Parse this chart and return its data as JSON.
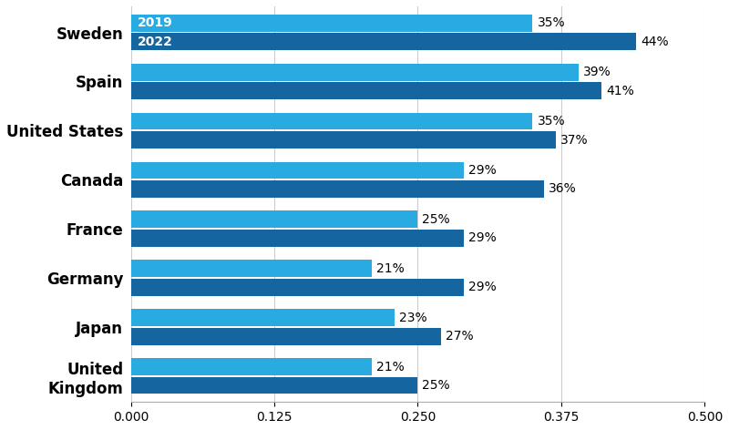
{
  "countries": [
    "United\nKingdom",
    "Japan",
    "Germany",
    "France",
    "Canada",
    "United States",
    "Spain",
    "Sweden"
  ],
  "values_2019": [
    0.21,
    0.23,
    0.21,
    0.25,
    0.29,
    0.35,
    0.39,
    0.35
  ],
  "values_2022": [
    0.25,
    0.27,
    0.29,
    0.29,
    0.36,
    0.37,
    0.41,
    0.44
  ],
  "labels_2019": [
    "21%",
    "23%",
    "21%",
    "25%",
    "29%",
    "35%",
    "39%",
    "35%"
  ],
  "labels_2022": [
    "25%",
    "27%",
    "29%",
    "29%",
    "36%",
    "37%",
    "41%",
    "44%"
  ],
  "color_2019": "#29ABE2",
  "color_2022": "#1565A0",
  "legend_2019": "2019",
  "legend_2022": "2022",
  "xlim": [
    0,
    0.5
  ],
  "xticks": [
    0,
    0.125,
    0.25,
    0.375,
    0.5
  ],
  "bar_height": 0.35,
  "bar_gap": 0.03,
  "background_color": "#ffffff",
  "label_fontsize": 10,
  "tick_fontsize": 10,
  "country_fontsize": 12
}
